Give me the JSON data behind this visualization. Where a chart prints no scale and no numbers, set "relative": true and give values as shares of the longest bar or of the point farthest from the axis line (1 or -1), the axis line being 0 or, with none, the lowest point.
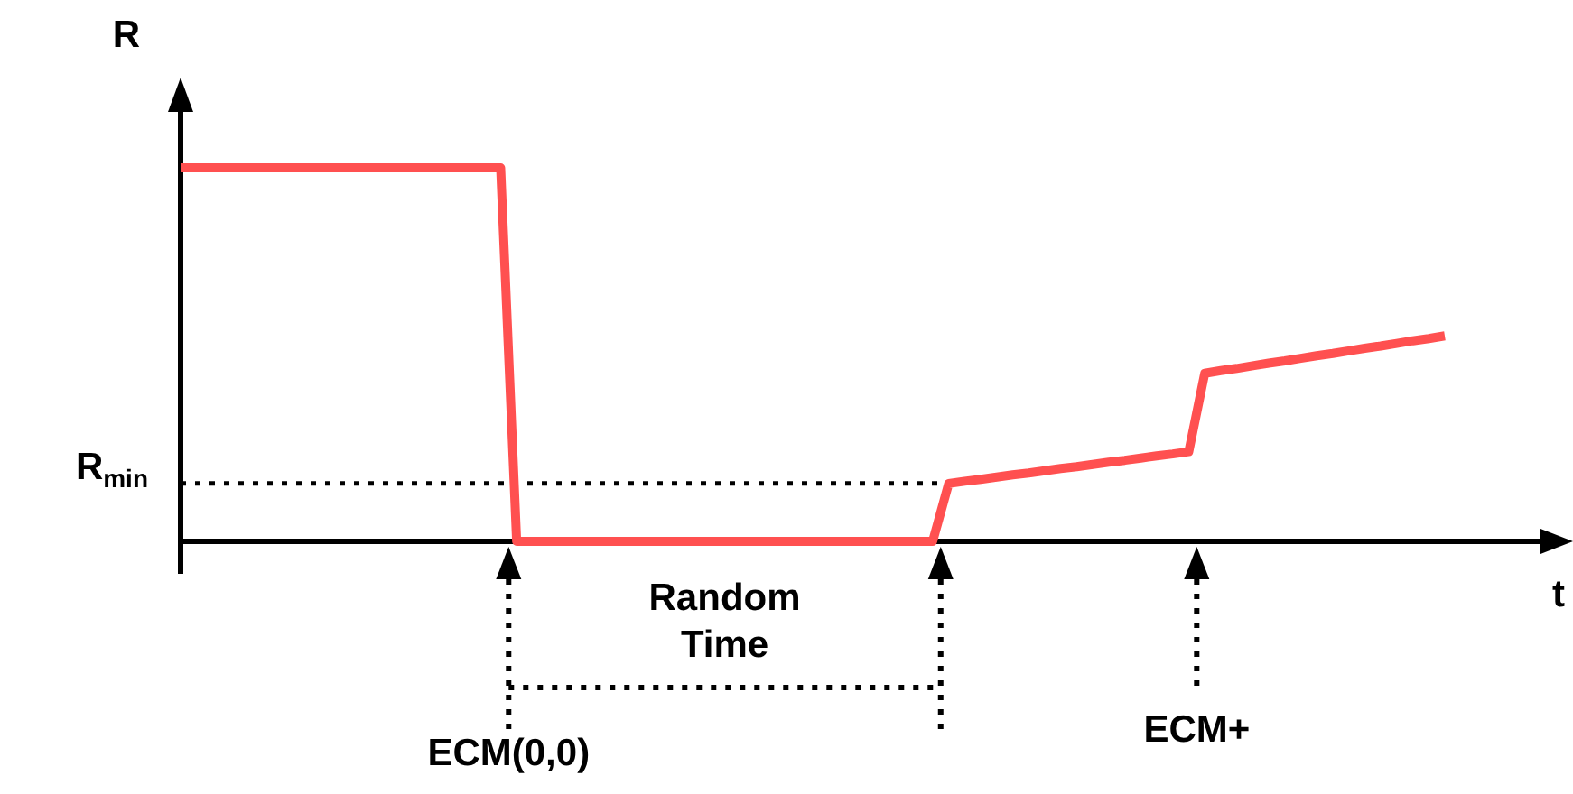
{
  "chart_data": {
    "type": "line",
    "xlabel": "t",
    "ylabel": "R",
    "relative": true,
    "legend": false,
    "marker": "none",
    "categories": [
      null,
      null,
      null,
      null,
      null,
      null,
      null,
      null,
      null,
      null,
      null,
      null,
      null,
      null,
      null,
      null,
      null,
      null,
      null,
      null,
      null,
      null,
      null,
      null,
      null,
      null,
      null,
      null,
      null,
      null,
      null,
      null,
      null,
      null,
      null,
      null,
      null,
      null,
      null,
      null,
      null,
      null,
      null,
      null,
      null,
      null,
      null,
      null,
      null,
      null,
      null,
      null,
      null,
      null,
      null,
      null,
      null,
      null,
      null,
      null,
      null,
      null,
      null,
      null,
      null,
      null,
      null,
      null,
      null,
      null,
      null,
      null,
      null,
      null,
      null,
      null,
      null,
      null,
      null,
      null
    ],
    "values": [
      1,
      1,
      1,
      1,
      1,
      1,
      1,
      1,
      1,
      1,
      1,
      1,
      1,
      1,
      1,
      1,
      1,
      1,
      1,
      1,
      1,
      0,
      0,
      0,
      0,
      0,
      0,
      0,
      0,
      0,
      0,
      0,
      0,
      0,
      0,
      0,
      0,
      0,
      0,
      0,
      0,
      0,
      0,
      0,
      0,
      0,
      0,
      0,
      0.155,
      0.161,
      0.166,
      0.172,
      0.178,
      0.183,
      0.189,
      0.195,
      0.2,
      0.206,
      0.212,
      0.217,
      0.223,
      0.229,
      0.234,
      0.24,
      0.45,
      0.457,
      0.463,
      0.47,
      0.477,
      0.483,
      0.49,
      0.497,
      0.503,
      0.51,
      0.517,
      0.523,
      0.53,
      0.537,
      0.543,
      0.55
    ],
    "color": "#ff5050",
    "ref_lines": [
      {
        "axis": "y",
        "value": 0.155,
        "label": "R$_{min}$",
        "line_style": "dotted",
        "color": "#000000"
      }
    ],
    "annotations": [
      "Random Time",
      "ECM(0,0)",
      "ECM+"
    ]
  }
}
